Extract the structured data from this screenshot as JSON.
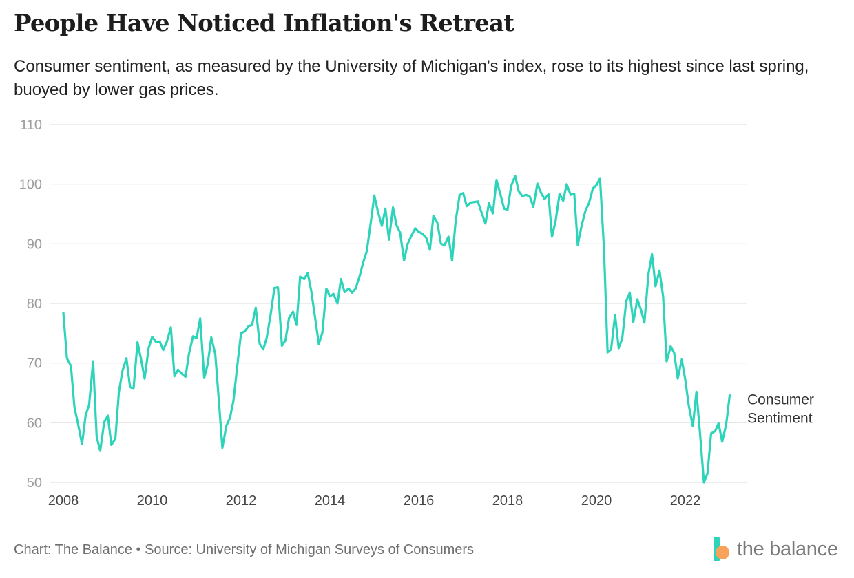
{
  "header": {
    "title": "People Have Noticed Inflation's Retreat",
    "subtitle": "Consumer sentiment, as measured by the University of Michigan's index, rose to its highest since last spring, buoyed by lower gas prices."
  },
  "footer": {
    "source": "Chart: The Balance • Source: University of Michigan Surveys of Consumers",
    "logo_text": "the balance"
  },
  "colors": {
    "line": "#2dd4b9",
    "grid": "#e2e2e2",
    "logo_teal": "#2dd4b9",
    "logo_orange": "#f7a35c"
  },
  "chart_data": {
    "type": "line",
    "title": "People Have Noticed Inflation's Retreat",
    "xlabel": "",
    "ylabel": "",
    "ylim": [
      50,
      110
    ],
    "xlim": [
      2008,
      2023.1
    ],
    "yticks": [
      "50",
      "60",
      "70",
      "80",
      "90",
      "100",
      "110"
    ],
    "xticks": [
      "2008",
      "2010",
      "2012",
      "2014",
      "2016",
      "2018",
      "2020",
      "2022"
    ],
    "grid": true,
    "series": [
      {
        "name": "Consumer Sentiment",
        "label": "Consumer Sentiment",
        "x": [
          2008.0,
          2008.08,
          2008.17,
          2008.25,
          2008.33,
          2008.42,
          2008.5,
          2008.58,
          2008.67,
          2008.75,
          2008.83,
          2008.92,
          2009.0,
          2009.08,
          2009.17,
          2009.25,
          2009.33,
          2009.42,
          2009.5,
          2009.58,
          2009.67,
          2009.75,
          2009.83,
          2009.92,
          2010.0,
          2010.08,
          2010.17,
          2010.25,
          2010.33,
          2010.42,
          2010.5,
          2010.58,
          2010.67,
          2010.75,
          2010.83,
          2010.92,
          2011.0,
          2011.08,
          2011.17,
          2011.25,
          2011.33,
          2011.42,
          2011.5,
          2011.58,
          2011.67,
          2011.75,
          2011.83,
          2011.92,
          2012.0,
          2012.08,
          2012.17,
          2012.25,
          2012.33,
          2012.42,
          2012.5,
          2012.58,
          2012.67,
          2012.75,
          2012.83,
          2012.92,
          2013.0,
          2013.08,
          2013.17,
          2013.25,
          2013.33,
          2013.42,
          2013.5,
          2013.58,
          2013.67,
          2013.75,
          2013.83,
          2013.92,
          2014.0,
          2014.08,
          2014.17,
          2014.25,
          2014.33,
          2014.42,
          2014.5,
          2014.58,
          2014.67,
          2014.75,
          2014.83,
          2014.92,
          2015.0,
          2015.08,
          2015.17,
          2015.25,
          2015.33,
          2015.42,
          2015.5,
          2015.58,
          2015.67,
          2015.75,
          2015.83,
          2015.92,
          2016.0,
          2016.08,
          2016.17,
          2016.25,
          2016.33,
          2016.42,
          2016.5,
          2016.58,
          2016.67,
          2016.75,
          2016.83,
          2016.92,
          2017.0,
          2017.08,
          2017.17,
          2017.25,
          2017.33,
          2017.42,
          2017.5,
          2017.58,
          2017.67,
          2017.75,
          2017.83,
          2017.92,
          2018.0,
          2018.08,
          2018.17,
          2018.25,
          2018.33,
          2018.42,
          2018.5,
          2018.58,
          2018.67,
          2018.75,
          2018.83,
          2018.92,
          2019.0,
          2019.08,
          2019.17,
          2019.25,
          2019.33,
          2019.42,
          2019.5,
          2019.58,
          2019.67,
          2019.75,
          2019.83,
          2019.92,
          2020.0,
          2020.08,
          2020.17,
          2020.25,
          2020.33,
          2020.42,
          2020.5,
          2020.58,
          2020.67,
          2020.75,
          2020.83,
          2020.92,
          2021.0,
          2021.08,
          2021.17,
          2021.25,
          2021.33,
          2021.42,
          2021.5,
          2021.58,
          2021.67,
          2021.75,
          2021.83,
          2021.92,
          2022.0,
          2022.08,
          2022.17,
          2022.25,
          2022.33,
          2022.42,
          2022.5,
          2022.58,
          2022.67,
          2022.75,
          2022.83,
          2022.92,
          2023.0
        ],
        "values": [
          78.4,
          70.8,
          69.5,
          62.6,
          59.8,
          56.4,
          61.2,
          63.0,
          70.3,
          57.6,
          55.3,
          60.1,
          61.2,
          56.3,
          57.3,
          65.1,
          68.7,
          70.8,
          66.0,
          65.7,
          73.5,
          70.6,
          67.4,
          72.5,
          74.4,
          73.6,
          73.6,
          72.2,
          73.6,
          76.0,
          67.8,
          68.9,
          68.2,
          67.7,
          71.6,
          74.5,
          74.2,
          77.5,
          67.5,
          69.8,
          74.3,
          71.5,
          63.7,
          55.8,
          59.5,
          60.8,
          63.7,
          69.9,
          75.0,
          75.3,
          76.2,
          76.4,
          79.3,
          73.2,
          72.3,
          74.3,
          78.3,
          82.6,
          82.7,
          72.9,
          73.8,
          77.6,
          78.6,
          76.4,
          84.5,
          84.1,
          85.1,
          82.1,
          77.5,
          73.2,
          75.1,
          82.5,
          81.2,
          81.6,
          80.0,
          84.1,
          81.9,
          82.5,
          81.8,
          82.5,
          84.6,
          86.9,
          88.8,
          93.6,
          98.1,
          95.4,
          93.0,
          95.9,
          90.7,
          96.1,
          93.1,
          91.9,
          87.2,
          90.0,
          91.3,
          92.6,
          92.0,
          91.7,
          91.0,
          89.0,
          94.7,
          93.5,
          90.0,
          89.8,
          91.2,
          87.2,
          93.8,
          98.2,
          98.5,
          96.3,
          96.9,
          97.0,
          97.1,
          95.1,
          93.4,
          96.8,
          95.1,
          100.7,
          98.5,
          95.9,
          95.7,
          99.7,
          101.4,
          98.8,
          98.0,
          98.2,
          97.9,
          96.2,
          100.1,
          98.6,
          97.5,
          98.3,
          91.2,
          93.8,
          98.4,
          97.2,
          100.0,
          98.2,
          98.4,
          89.8,
          93.2,
          95.5,
          96.8,
          99.3,
          99.8,
          101.0,
          89.1,
          71.8,
          72.3,
          78.1,
          72.5,
          74.1,
          80.4,
          81.8,
          76.9,
          80.7,
          79.0,
          76.8,
          84.9,
          88.3,
          82.9,
          85.5,
          81.2,
          70.3,
          72.8,
          71.7,
          67.4,
          70.6,
          67.2,
          62.8,
          59.4,
          65.2,
          58.4,
          50.0,
          51.5,
          58.2,
          58.6,
          59.9,
          56.8,
          59.7,
          64.6
        ]
      }
    ]
  }
}
